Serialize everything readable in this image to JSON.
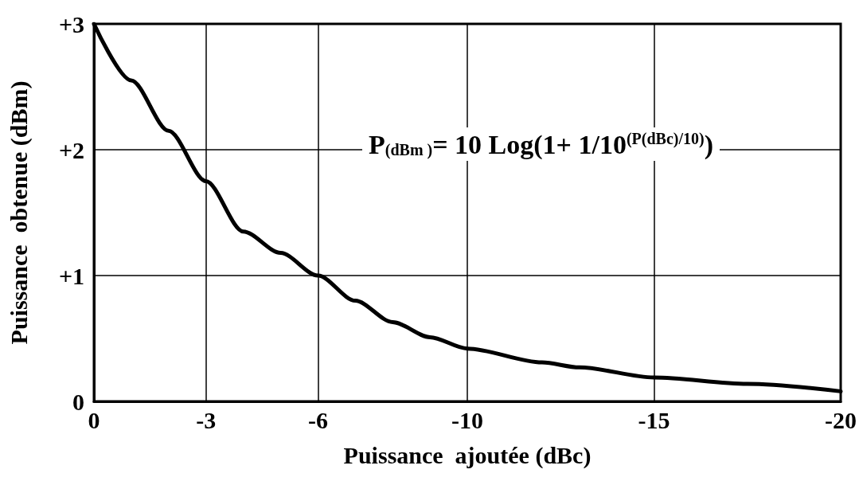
{
  "chart_data": {
    "type": "line",
    "xlabel": "Puissance  ajoutée (dBc)",
    "ylabel": "Puissance  obtenue (dBm)",
    "x": [
      0,
      -1,
      -2,
      -3,
      -4,
      -5,
      -6,
      -7,
      -8,
      -9,
      -10,
      -12,
      -13,
      -15,
      -17.5,
      -20
    ],
    "series": [
      {
        "color": "#000000",
        "values": [
          3.0,
          2.55,
          2.15,
          1.75,
          1.35,
          1.18,
          1.0,
          0.8,
          0.63,
          0.51,
          0.42,
          0.31,
          0.27,
          0.19,
          0.14,
          0.08
        ]
      }
    ],
    "xlim": [
      0,
      -20
    ],
    "xticks": [
      0,
      -3,
      -6,
      -10,
      -15,
      -20
    ],
    "ylim": [
      0,
      3
    ],
    "yticks": [
      {
        "value": 0,
        "label": "0"
      },
      {
        "value": 1,
        "label": "+1"
      },
      {
        "value": 2,
        "label": "+2"
      },
      {
        "value": 3,
        "label": "+3"
      }
    ],
    "grid": true,
    "marker": "none",
    "line_style": "solid",
    "annotations": [
      "P$_{(dBm )}$= 10 Log(1+ 1/10$^{(P(dBc)/10)}$)"
    ]
  }
}
